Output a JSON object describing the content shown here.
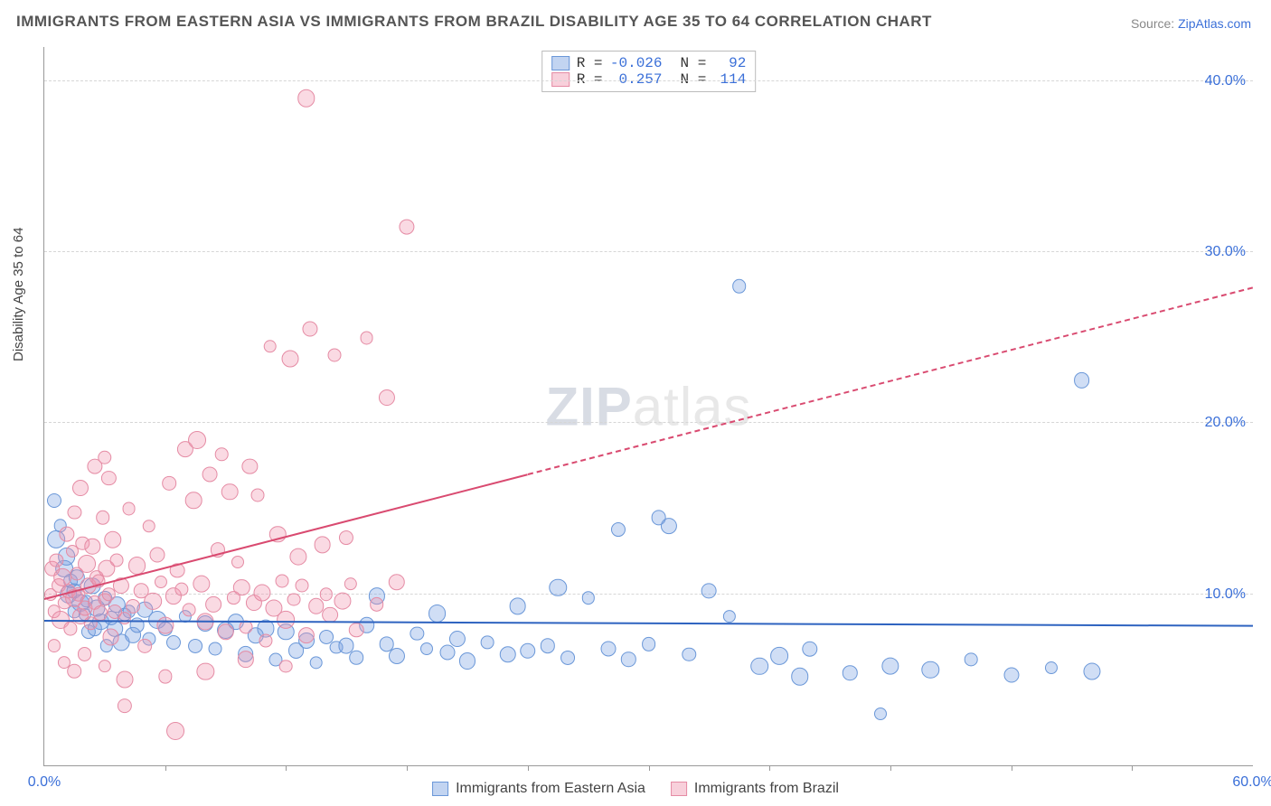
{
  "title": "IMMIGRANTS FROM EASTERN ASIA VS IMMIGRANTS FROM BRAZIL DISABILITY AGE 35 TO 64 CORRELATION CHART",
  "source_prefix": "Source: ",
  "source_link": "ZipAtlas.com",
  "ylabel": "Disability Age 35 to 64",
  "watermark_bold": "ZIP",
  "watermark_rest": "atlas",
  "chart": {
    "type": "scatter",
    "xlim": [
      0,
      60
    ],
    "ylim": [
      0,
      42
    ],
    "ytick_values": [
      10,
      20,
      30,
      40
    ],
    "ytick_labels": [
      "10.0%",
      "20.0%",
      "30.0%",
      "40.0%"
    ],
    "xtick_values": [
      0,
      60
    ],
    "xtick_labels": [
      "0.0%",
      "60.0%"
    ],
    "xtick_minor": [
      6,
      12,
      18,
      24,
      30,
      36,
      42,
      48,
      54
    ],
    "grid_color": "#d6d6d6",
    "background_color": "#ffffff",
    "series": [
      {
        "name": "Immigrants from Eastern Asia",
        "color_fill": "rgba(120,160,225,0.35)",
        "color_stroke": "#6a97d8",
        "trend_color": "#2e63c0",
        "R": "-0.026",
        "N": "92",
        "trend": {
          "x1": 0,
          "y1": 8.5,
          "x2": 60,
          "y2": 8.2,
          "dashed_from_x": 60
        },
        "points": [
          [
            0.5,
            15.5
          ],
          [
            0.6,
            13.2
          ],
          [
            0.8,
            14.0
          ],
          [
            1.0,
            11.5
          ],
          [
            1.1,
            12.2
          ],
          [
            1.2,
            10.0
          ],
          [
            1.3,
            10.8
          ],
          [
            1.5,
            10.2
          ],
          [
            1.5,
            9.0
          ],
          [
            1.6,
            11.0
          ],
          [
            1.8,
            9.5
          ],
          [
            2.0,
            8.8
          ],
          [
            2.1,
            9.6
          ],
          [
            2.2,
            7.8
          ],
          [
            2.4,
            10.5
          ],
          [
            2.5,
            8.0
          ],
          [
            2.6,
            9.2
          ],
          [
            2.8,
            8.4
          ],
          [
            3.0,
            9.8
          ],
          [
            3.1,
            7.0
          ],
          [
            3.3,
            8.6
          ],
          [
            3.5,
            8.0
          ],
          [
            3.6,
            9.4
          ],
          [
            3.8,
            7.2
          ],
          [
            4.0,
            8.8
          ],
          [
            4.2,
            9.0
          ],
          [
            4.4,
            7.6
          ],
          [
            4.6,
            8.2
          ],
          [
            5.0,
            9.1
          ],
          [
            5.2,
            7.4
          ],
          [
            5.6,
            8.5
          ],
          [
            6.0,
            8.0
          ],
          [
            6.4,
            7.2
          ],
          [
            7.0,
            8.7
          ],
          [
            7.5,
            7.0
          ],
          [
            8.0,
            8.3
          ],
          [
            8.5,
            6.8
          ],
          [
            9.0,
            7.9
          ],
          [
            9.5,
            8.4
          ],
          [
            10.0,
            6.5
          ],
          [
            10.5,
            7.6
          ],
          [
            11.0,
            8.0
          ],
          [
            11.5,
            6.2
          ],
          [
            12.0,
            7.8
          ],
          [
            12.5,
            6.7
          ],
          [
            13.0,
            7.3
          ],
          [
            13.5,
            6.0
          ],
          [
            14.0,
            7.5
          ],
          [
            14.5,
            6.9
          ],
          [
            15.0,
            7.0
          ],
          [
            15.5,
            6.3
          ],
          [
            16.0,
            8.2
          ],
          [
            16.5,
            9.9
          ],
          [
            17.0,
            7.1
          ],
          [
            17.5,
            6.4
          ],
          [
            18.5,
            7.7
          ],
          [
            19.0,
            6.8
          ],
          [
            19.5,
            8.9
          ],
          [
            20.0,
            6.6
          ],
          [
            20.5,
            7.4
          ],
          [
            21.0,
            6.1
          ],
          [
            22.0,
            7.2
          ],
          [
            23.0,
            6.5
          ],
          [
            23.5,
            9.3
          ],
          [
            24.0,
            6.7
          ],
          [
            25.0,
            7.0
          ],
          [
            25.5,
            10.4
          ],
          [
            26.0,
            6.3
          ],
          [
            27.0,
            9.8
          ],
          [
            28.0,
            6.8
          ],
          [
            28.5,
            13.8
          ],
          [
            29.0,
            6.2
          ],
          [
            30.0,
            7.1
          ],
          [
            30.5,
            14.5
          ],
          [
            31.0,
            14.0
          ],
          [
            32.0,
            6.5
          ],
          [
            33.0,
            10.2
          ],
          [
            34.0,
            8.7
          ],
          [
            34.5,
            28.0
          ],
          [
            35.5,
            5.8
          ],
          [
            36.5,
            6.4
          ],
          [
            37.5,
            5.2
          ],
          [
            38.0,
            6.8
          ],
          [
            40.0,
            5.4
          ],
          [
            41.5,
            3.0
          ],
          [
            42.0,
            5.8
          ],
          [
            44.0,
            5.6
          ],
          [
            46.0,
            6.2
          ],
          [
            48.0,
            5.3
          ],
          [
            50.0,
            5.7
          ],
          [
            51.5,
            22.5
          ],
          [
            52.0,
            5.5
          ]
        ]
      },
      {
        "name": "Immigrants from Brazil",
        "color_fill": "rgba(240,150,175,0.35)",
        "color_stroke": "#e58ba4",
        "trend_color": "#d94a70",
        "R": "0.257",
        "N": "114",
        "trend": {
          "x1": 0,
          "y1": 9.8,
          "x2": 60,
          "y2": 28.0,
          "dashed_from_x": 24
        },
        "points": [
          [
            0.3,
            10.0
          ],
          [
            0.4,
            11.5
          ],
          [
            0.5,
            9.0
          ],
          [
            0.6,
            12.0
          ],
          [
            0.7,
            10.5
          ],
          [
            0.8,
            8.5
          ],
          [
            0.9,
            11.0
          ],
          [
            1.0,
            9.5
          ],
          [
            1.1,
            13.5
          ],
          [
            1.2,
            10.2
          ],
          [
            1.3,
            8.0
          ],
          [
            1.4,
            12.5
          ],
          [
            1.5,
            9.8
          ],
          [
            1.6,
            11.2
          ],
          [
            1.7,
            10.0
          ],
          [
            1.8,
            8.7
          ],
          [
            1.9,
            13.0
          ],
          [
            2.0,
            9.2
          ],
          [
            2.1,
            11.8
          ],
          [
            2.2,
            10.5
          ],
          [
            2.3,
            8.3
          ],
          [
            2.4,
            12.8
          ],
          [
            2.5,
            9.5
          ],
          [
            2.6,
            11.0
          ],
          [
            2.7,
            10.8
          ],
          [
            2.8,
            8.9
          ],
          [
            2.9,
            14.5
          ],
          [
            3.0,
            9.7
          ],
          [
            3.1,
            11.5
          ],
          [
            3.2,
            10.0
          ],
          [
            3.3,
            7.5
          ],
          [
            3.4,
            13.2
          ],
          [
            3.5,
            9.0
          ],
          [
            3.6,
            12.0
          ],
          [
            3.8,
            10.5
          ],
          [
            4.0,
            8.6
          ],
          [
            4.2,
            15.0
          ],
          [
            4.4,
            9.3
          ],
          [
            4.6,
            11.7
          ],
          [
            4.8,
            10.2
          ],
          [
            5.0,
            7.0
          ],
          [
            5.2,
            14.0
          ],
          [
            5.4,
            9.6
          ],
          [
            5.6,
            12.3
          ],
          [
            5.8,
            10.7
          ],
          [
            6.0,
            8.2
          ],
          [
            6.2,
            16.5
          ],
          [
            6.4,
            9.9
          ],
          [
            6.6,
            11.4
          ],
          [
            6.8,
            10.3
          ],
          [
            7.0,
            18.5
          ],
          [
            7.2,
            9.1
          ],
          [
            7.4,
            15.5
          ],
          [
            7.6,
            19.0
          ],
          [
            7.8,
            10.6
          ],
          [
            8.0,
            8.4
          ],
          [
            8.2,
            17.0
          ],
          [
            8.4,
            9.4
          ],
          [
            8.6,
            12.6
          ],
          [
            8.8,
            18.2
          ],
          [
            9.0,
            7.8
          ],
          [
            9.2,
            16.0
          ],
          [
            9.4,
            9.8
          ],
          [
            9.6,
            11.9
          ],
          [
            9.8,
            10.4
          ],
          [
            10.0,
            8.1
          ],
          [
            10.2,
            17.5
          ],
          [
            10.4,
            9.5
          ],
          [
            10.6,
            15.8
          ],
          [
            10.8,
            10.1
          ],
          [
            11.0,
            7.3
          ],
          [
            11.2,
            24.5
          ],
          [
            11.4,
            9.2
          ],
          [
            11.6,
            13.5
          ],
          [
            11.8,
            10.8
          ],
          [
            12.0,
            8.5
          ],
          [
            12.2,
            23.8
          ],
          [
            12.4,
            9.7
          ],
          [
            12.6,
            12.2
          ],
          [
            12.8,
            10.5
          ],
          [
            13.0,
            7.6
          ],
          [
            13.2,
            25.5
          ],
          [
            13.5,
            9.3
          ],
          [
            13.8,
            12.9
          ],
          [
            14.0,
            10.0
          ],
          [
            14.2,
            8.8
          ],
          [
            14.4,
            24.0
          ],
          [
            14.8,
            9.6
          ],
          [
            15.0,
            13.3
          ],
          [
            15.2,
            10.6
          ],
          [
            15.5,
            7.9
          ],
          [
            16.0,
            25.0
          ],
          [
            16.5,
            9.4
          ],
          [
            17.0,
            21.5
          ],
          [
            17.5,
            10.7
          ],
          [
            6.5,
            2.0
          ],
          [
            13.0,
            39.0
          ],
          [
            18.0,
            31.5
          ],
          [
            4.0,
            3.5
          ],
          [
            2.5,
            17.5
          ],
          [
            3.0,
            18.0
          ],
          [
            3.2,
            16.8
          ],
          [
            1.5,
            14.8
          ],
          [
            1.8,
            16.2
          ],
          [
            0.5,
            7.0
          ],
          [
            1.0,
            6.0
          ],
          [
            1.5,
            5.5
          ],
          [
            2.0,
            6.5
          ],
          [
            3.0,
            5.8
          ],
          [
            4.0,
            5.0
          ],
          [
            6.0,
            5.2
          ],
          [
            8.0,
            5.5
          ],
          [
            10.0,
            6.2
          ],
          [
            12.0,
            5.8
          ]
        ]
      }
    ]
  },
  "legend_top": {
    "rows": [
      {
        "swatch_fill": "rgba(120,160,225,0.45)",
        "swatch_border": "#6a97d8",
        "r_label": "R =",
        "r_val": "-0.026",
        "n_label": "N =",
        "n_val": "92"
      },
      {
        "swatch_fill": "rgba(240,150,175,0.45)",
        "swatch_border": "#e58ba4",
        "r_label": "R =",
        "r_val": "0.257",
        "n_label": "N =",
        "n_val": "114"
      }
    ]
  },
  "legend_bottom": {
    "items": [
      {
        "swatch_fill": "rgba(120,160,225,0.45)",
        "swatch_border": "#6a97d8",
        "label": "Immigrants from Eastern Asia"
      },
      {
        "swatch_fill": "rgba(240,150,175,0.45)",
        "swatch_border": "#e58ba4",
        "label": "Immigrants from Brazil"
      }
    ]
  }
}
